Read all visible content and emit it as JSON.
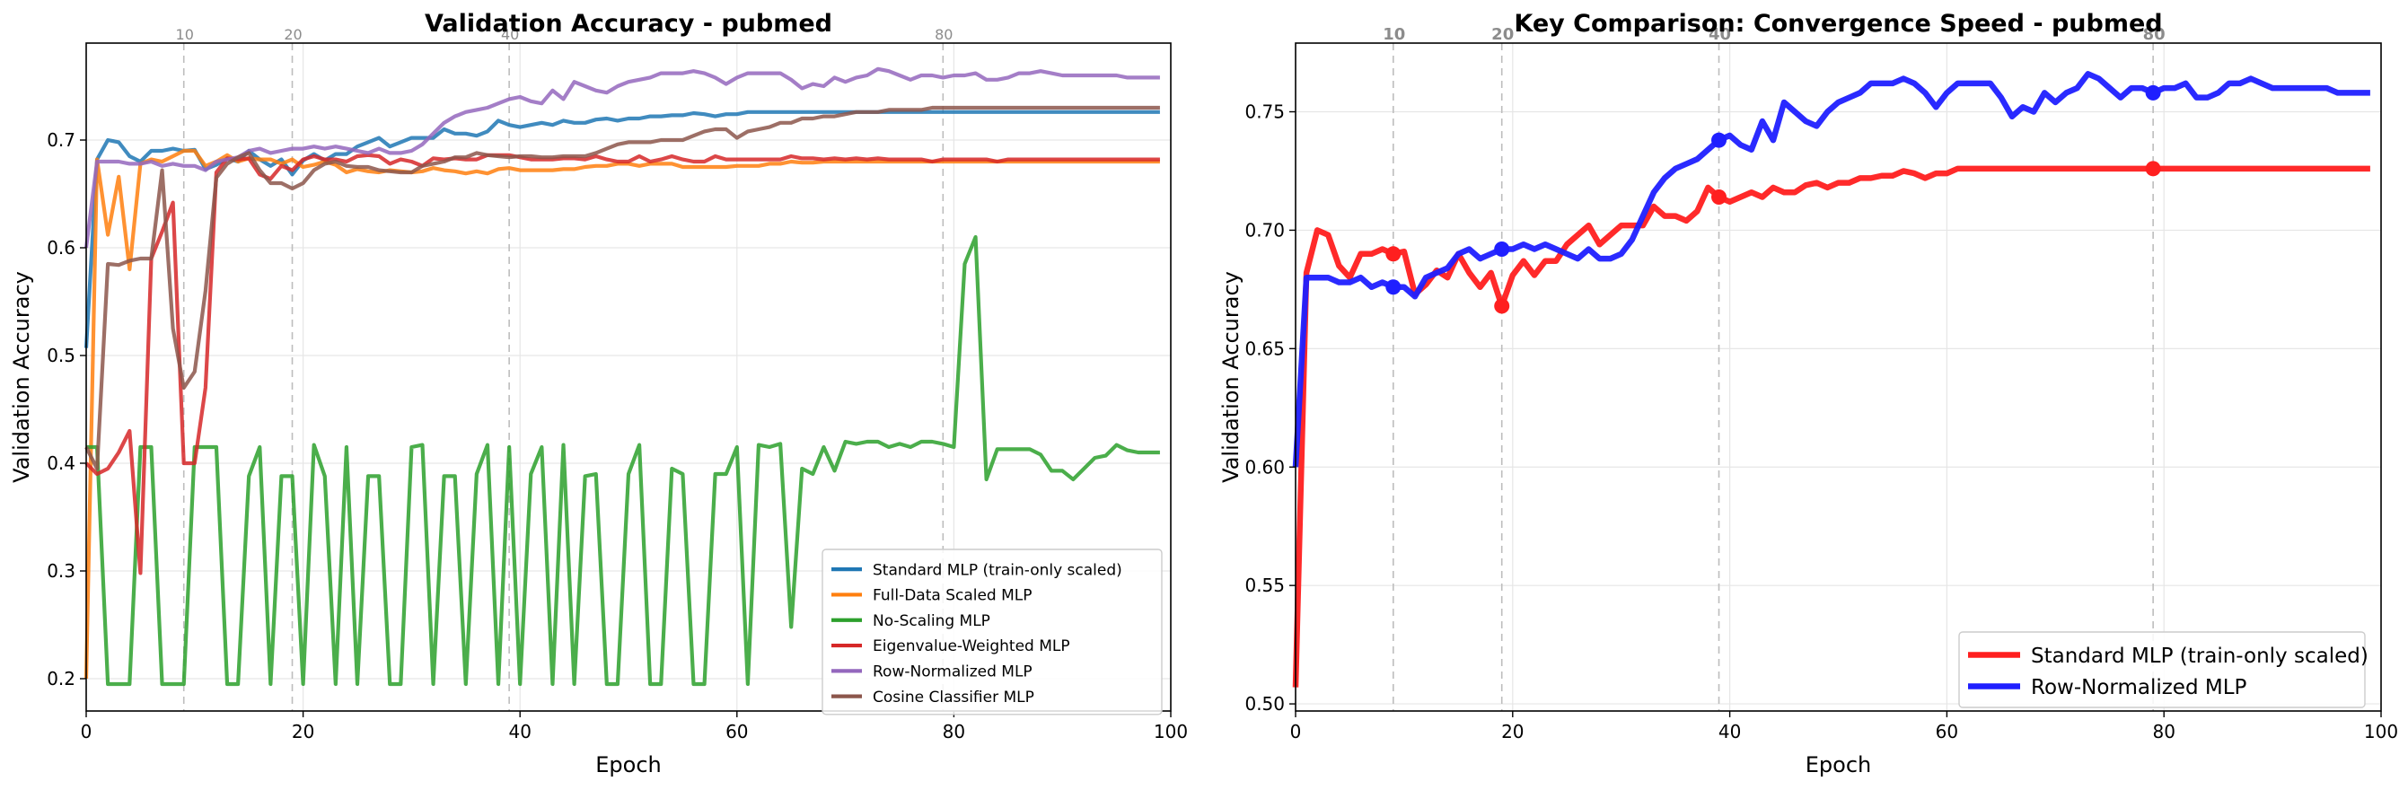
{
  "chart_data": [
    {
      "type": "line",
      "title": "Validation Accuracy - pubmed",
      "xlabel": "Epoch",
      "ylabel": "Validation Accuracy",
      "xlim": [
        0,
        100
      ],
      "ylim": [
        0.17,
        0.79
      ],
      "xticks": [
        0,
        20,
        40,
        60,
        80,
        100
      ],
      "yticks": [
        0.2,
        0.3,
        0.4,
        0.5,
        0.6,
        0.7
      ],
      "grid": true,
      "legend_position": "lower-right",
      "markers": [
        {
          "x": 9,
          "label": "10"
        },
        {
          "x": 19,
          "label": "20"
        },
        {
          "x": 39,
          "label": "40"
        },
        {
          "x": 79,
          "label": "80"
        }
      ],
      "series": [
        {
          "name": "Standard MLP (train-only scaled)",
          "color": "#1f77b4",
          "values": [
            0.507,
            0.682,
            0.7,
            0.698,
            0.685,
            0.68,
            0.69,
            0.69,
            0.692,
            0.69,
            0.691,
            0.673,
            0.677,
            0.683,
            0.68,
            0.69,
            0.682,
            0.676,
            0.682,
            0.668,
            0.681,
            0.687,
            0.681,
            0.687,
            0.687,
            0.694,
            0.698,
            0.702,
            0.694,
            0.698,
            0.702,
            0.702,
            0.702,
            0.71,
            0.706,
            0.706,
            0.704,
            0.708,
            0.718,
            0.714,
            0.712,
            0.714,
            0.716,
            0.714,
            0.718,
            0.716,
            0.716,
            0.719,
            0.72,
            0.718,
            0.72,
            0.72,
            0.722,
            0.722,
            0.723,
            0.723,
            0.725,
            0.724,
            0.722,
            0.724,
            0.724,
            0.726,
            0.726,
            0.726,
            0.726,
            0.726,
            0.726,
            0.726,
            0.726,
            0.726,
            0.726,
            0.726,
            0.726,
            0.726,
            0.726,
            0.726,
            0.726,
            0.726,
            0.726,
            0.726,
            0.726,
            0.726,
            0.726,
            0.726,
            0.726,
            0.726,
            0.726,
            0.726,
            0.726,
            0.726,
            0.726,
            0.726,
            0.726,
            0.726,
            0.726,
            0.726,
            0.726,
            0.726,
            0.726,
            0.726
          ]
        },
        {
          "name": "Full-Data Scaled MLP",
          "color": "#ff7f0e",
          "values": [
            0.2,
            0.682,
            0.612,
            0.666,
            0.58,
            0.678,
            0.682,
            0.68,
            0.685,
            0.69,
            0.69,
            0.676,
            0.68,
            0.686,
            0.68,
            0.683,
            0.682,
            0.682,
            0.678,
            0.682,
            0.675,
            0.677,
            0.68,
            0.677,
            0.67,
            0.673,
            0.671,
            0.67,
            0.672,
            0.671,
            0.67,
            0.671,
            0.674,
            0.672,
            0.671,
            0.669,
            0.671,
            0.669,
            0.673,
            0.674,
            0.672,
            0.672,
            0.672,
            0.672,
            0.673,
            0.673,
            0.675,
            0.676,
            0.676,
            0.678,
            0.678,
            0.676,
            0.678,
            0.678,
            0.678,
            0.675,
            0.675,
            0.675,
            0.675,
            0.675,
            0.676,
            0.676,
            0.676,
            0.678,
            0.678,
            0.68,
            0.679,
            0.679,
            0.68,
            0.68,
            0.68,
            0.68,
            0.68,
            0.68,
            0.68,
            0.68,
            0.68,
            0.68,
            0.68,
            0.68,
            0.68,
            0.68,
            0.68,
            0.68,
            0.68,
            0.68,
            0.68,
            0.68,
            0.68,
            0.68,
            0.68,
            0.68,
            0.68,
            0.68,
            0.68,
            0.68,
            0.68,
            0.68,
            0.68,
            0.68
          ]
        },
        {
          "name": "No-Scaling MLP",
          "color": "#2ca02c",
          "values": [
            0.415,
            0.415,
            0.195,
            0.195,
            0.195,
            0.415,
            0.415,
            0.195,
            0.195,
            0.195,
            0.415,
            0.415,
            0.415,
            0.195,
            0.195,
            0.388,
            0.415,
            0.195,
            0.388,
            0.388,
            0.195,
            0.417,
            0.388,
            0.195,
            0.415,
            0.195,
            0.388,
            0.388,
            0.195,
            0.195,
            0.415,
            0.417,
            0.195,
            0.388,
            0.388,
            0.195,
            0.39,
            0.417,
            0.195,
            0.415,
            0.195,
            0.39,
            0.415,
            0.195,
            0.417,
            0.195,
            0.388,
            0.39,
            0.195,
            0.195,
            0.39,
            0.417,
            0.195,
            0.195,
            0.395,
            0.39,
            0.195,
            0.195,
            0.39,
            0.39,
            0.415,
            0.195,
            0.417,
            0.415,
            0.418,
            0.248,
            0.395,
            0.39,
            0.415,
            0.393,
            0.42,
            0.418,
            0.42,
            0.42,
            0.415,
            0.418,
            0.415,
            0.42,
            0.42,
            0.418,
            0.415,
            0.585,
            0.61,
            0.385,
            0.413,
            0.413,
            0.413,
            0.413,
            0.408,
            0.393,
            0.393,
            0.385,
            0.395,
            0.405,
            0.407,
            0.417,
            0.412,
            0.41,
            0.41,
            0.41
          ]
        },
        {
          "name": "Eigenvalue-Weighted MLP",
          "color": "#d62728",
          "values": [
            0.4,
            0.39,
            0.395,
            0.41,
            0.43,
            0.298,
            0.59,
            0.615,
            0.642,
            0.4,
            0.4,
            0.47,
            0.67,
            0.683,
            0.682,
            0.683,
            0.668,
            0.664,
            0.676,
            0.672,
            0.682,
            0.685,
            0.682,
            0.682,
            0.68,
            0.685,
            0.686,
            0.685,
            0.678,
            0.682,
            0.68,
            0.676,
            0.683,
            0.682,
            0.683,
            0.682,
            0.682,
            0.686,
            0.686,
            0.686,
            0.684,
            0.682,
            0.682,
            0.682,
            0.683,
            0.683,
            0.682,
            0.685,
            0.682,
            0.68,
            0.68,
            0.685,
            0.68,
            0.682,
            0.685,
            0.682,
            0.68,
            0.68,
            0.685,
            0.682,
            0.682,
            0.682,
            0.682,
            0.682,
            0.682,
            0.685,
            0.683,
            0.683,
            0.682,
            0.683,
            0.682,
            0.683,
            0.682,
            0.683,
            0.682,
            0.682,
            0.682,
            0.682,
            0.68,
            0.682,
            0.682,
            0.682,
            0.682,
            0.682,
            0.68,
            0.682,
            0.682,
            0.682,
            0.682,
            0.682,
            0.682,
            0.682,
            0.682,
            0.682,
            0.682,
            0.682,
            0.682,
            0.682,
            0.682,
            0.682
          ]
        },
        {
          "name": "Row-Normalized MLP",
          "color": "#9467bd",
          "values": [
            0.6,
            0.68,
            0.68,
            0.68,
            0.678,
            0.678,
            0.68,
            0.676,
            0.678,
            0.676,
            0.676,
            0.672,
            0.68,
            0.682,
            0.684,
            0.69,
            0.692,
            0.688,
            0.69,
            0.692,
            0.692,
            0.694,
            0.692,
            0.694,
            0.692,
            0.69,
            0.688,
            0.692,
            0.688,
            0.688,
            0.69,
            0.696,
            0.706,
            0.716,
            0.722,
            0.726,
            0.728,
            0.73,
            0.734,
            0.738,
            0.74,
            0.736,
            0.734,
            0.746,
            0.738,
            0.754,
            0.75,
            0.746,
            0.744,
            0.75,
            0.754,
            0.756,
            0.758,
            0.762,
            0.762,
            0.762,
            0.764,
            0.762,
            0.758,
            0.752,
            0.758,
            0.762,
            0.762,
            0.762,
            0.762,
            0.756,
            0.748,
            0.752,
            0.75,
            0.758,
            0.754,
            0.758,
            0.76,
            0.766,
            0.764,
            0.76,
            0.756,
            0.76,
            0.76,
            0.758,
            0.76,
            0.76,
            0.762,
            0.756,
            0.756,
            0.758,
            0.762,
            0.762,
            0.764,
            0.762,
            0.76,
            0.76,
            0.76,
            0.76,
            0.76,
            0.76,
            0.758,
            0.758,
            0.758,
            0.758
          ]
        },
        {
          "name": "Cosine Classifier MLP",
          "color": "#8c564b",
          "values": [
            0.415,
            0.395,
            0.585,
            0.584,
            0.588,
            0.59,
            0.59,
            0.672,
            0.525,
            0.47,
            0.485,
            0.56,
            0.665,
            0.678,
            0.684,
            0.688,
            0.672,
            0.66,
            0.66,
            0.655,
            0.66,
            0.672,
            0.678,
            0.68,
            0.676,
            0.675,
            0.675,
            0.672,
            0.671,
            0.67,
            0.67,
            0.676,
            0.678,
            0.68,
            0.684,
            0.684,
            0.688,
            0.686,
            0.685,
            0.684,
            0.685,
            0.685,
            0.684,
            0.684,
            0.685,
            0.685,
            0.685,
            0.688,
            0.692,
            0.696,
            0.698,
            0.698,
            0.698,
            0.7,
            0.7,
            0.7,
            0.704,
            0.708,
            0.71,
            0.71,
            0.702,
            0.708,
            0.71,
            0.712,
            0.716,
            0.716,
            0.72,
            0.72,
            0.722,
            0.722,
            0.724,
            0.726,
            0.726,
            0.726,
            0.728,
            0.728,
            0.728,
            0.728,
            0.73,
            0.73,
            0.73,
            0.73,
            0.73,
            0.73,
            0.73,
            0.73,
            0.73,
            0.73,
            0.73,
            0.73,
            0.73,
            0.73,
            0.73,
            0.73,
            0.73,
            0.73,
            0.73,
            0.73,
            0.73,
            0.73
          ]
        }
      ]
    },
    {
      "type": "line",
      "title": "Key Comparison: Convergence Speed - pubmed",
      "xlabel": "Epoch",
      "ylabel": "Validation Accuracy",
      "xlim": [
        0,
        100
      ],
      "ylim": [
        0.497,
        0.779
      ],
      "xticks": [
        0,
        20,
        40,
        60,
        80,
        100
      ],
      "yticks": [
        0.5,
        0.55,
        0.6,
        0.65,
        0.7,
        0.75
      ],
      "grid": true,
      "legend_position": "lower-right",
      "markers": [
        {
          "x": 9,
          "label": "10"
        },
        {
          "x": 19,
          "label": "20"
        },
        {
          "x": 39,
          "label": "40"
        },
        {
          "x": 79,
          "label": "80"
        }
      ],
      "highlight_epochs": [
        9,
        19,
        39,
        79
      ],
      "series": [
        {
          "name": "Standard MLP (train-only scaled)",
          "color": "#ff1f1f",
          "values": [
            0.507,
            0.682,
            0.7,
            0.698,
            0.685,
            0.68,
            0.69,
            0.69,
            0.692,
            0.69,
            0.691,
            0.673,
            0.677,
            0.683,
            0.68,
            0.69,
            0.682,
            0.676,
            0.682,
            0.668,
            0.681,
            0.687,
            0.681,
            0.687,
            0.687,
            0.694,
            0.698,
            0.702,
            0.694,
            0.698,
            0.702,
            0.702,
            0.702,
            0.71,
            0.706,
            0.706,
            0.704,
            0.708,
            0.718,
            0.714,
            0.712,
            0.714,
            0.716,
            0.714,
            0.718,
            0.716,
            0.716,
            0.719,
            0.72,
            0.718,
            0.72,
            0.72,
            0.722,
            0.722,
            0.723,
            0.723,
            0.725,
            0.724,
            0.722,
            0.724,
            0.724,
            0.726,
            0.726,
            0.726,
            0.726,
            0.726,
            0.726,
            0.726,
            0.726,
            0.726,
            0.726,
            0.726,
            0.726,
            0.726,
            0.726,
            0.726,
            0.726,
            0.726,
            0.726,
            0.726,
            0.726,
            0.726,
            0.726,
            0.726,
            0.726,
            0.726,
            0.726,
            0.726,
            0.726,
            0.726,
            0.726,
            0.726,
            0.726,
            0.726,
            0.726,
            0.726,
            0.726,
            0.726,
            0.726,
            0.726
          ]
        },
        {
          "name": "Row-Normalized MLP",
          "color": "#1f1fff",
          "values": [
            0.6,
            0.68,
            0.68,
            0.68,
            0.678,
            0.678,
            0.68,
            0.676,
            0.678,
            0.676,
            0.676,
            0.672,
            0.68,
            0.682,
            0.684,
            0.69,
            0.692,
            0.688,
            0.69,
            0.692,
            0.692,
            0.694,
            0.692,
            0.694,
            0.692,
            0.69,
            0.688,
            0.692,
            0.688,
            0.688,
            0.69,
            0.696,
            0.706,
            0.716,
            0.722,
            0.726,
            0.728,
            0.73,
            0.734,
            0.738,
            0.74,
            0.736,
            0.734,
            0.746,
            0.738,
            0.754,
            0.75,
            0.746,
            0.744,
            0.75,
            0.754,
            0.756,
            0.758,
            0.762,
            0.762,
            0.762,
            0.764,
            0.762,
            0.758,
            0.752,
            0.758,
            0.762,
            0.762,
            0.762,
            0.762,
            0.756,
            0.748,
            0.752,
            0.75,
            0.758,
            0.754,
            0.758,
            0.76,
            0.766,
            0.764,
            0.76,
            0.756,
            0.76,
            0.76,
            0.758,
            0.76,
            0.76,
            0.762,
            0.756,
            0.756,
            0.758,
            0.762,
            0.762,
            0.764,
            0.762,
            0.76,
            0.76,
            0.76,
            0.76,
            0.76,
            0.76,
            0.758,
            0.758,
            0.758,
            0.758
          ]
        }
      ]
    }
  ]
}
